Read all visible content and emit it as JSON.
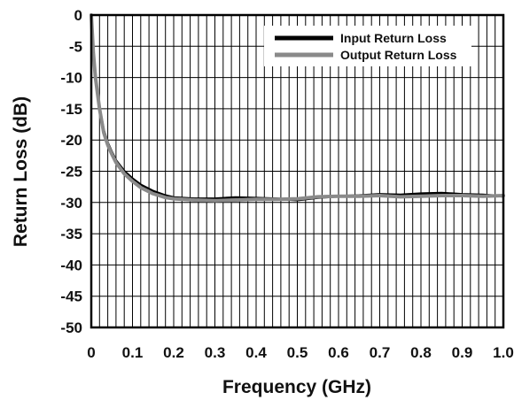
{
  "chart_data": {
    "type": "line",
    "xlabel": "Frequency (GHz)",
    "ylabel": "Return Loss (dB)",
    "xlim": [
      0,
      1.0
    ],
    "ylim": [
      -50,
      0
    ],
    "grid": true,
    "legend_placement": "top-right",
    "x_ticks": [
      "0",
      "0.1",
      "0.2",
      "0.3",
      "0.4",
      "0.5",
      "0.6",
      "0.7",
      "0.8",
      "0.9",
      "1.0"
    ],
    "y_ticks": [
      "0",
      "-5",
      "-10",
      "-15",
      "-20",
      "-25",
      "-30",
      "-35",
      "-40",
      "-45",
      "-50"
    ],
    "series": [
      {
        "name": "Input Return Loss",
        "color": "#000000",
        "points": [
          [
            0,
            0
          ],
          [
            0.005,
            -6
          ],
          [
            0.01,
            -10
          ],
          [
            0.02,
            -15
          ],
          [
            0.03,
            -18.5
          ],
          [
            0.04,
            -20.5
          ],
          [
            0.05,
            -22
          ],
          [
            0.06,
            -23.3
          ],
          [
            0.08,
            -25
          ],
          [
            0.1,
            -26.2
          ],
          [
            0.12,
            -27.2
          ],
          [
            0.15,
            -28.2
          ],
          [
            0.18,
            -28.9
          ],
          [
            0.2,
            -29.2
          ],
          [
            0.25,
            -29.4
          ],
          [
            0.3,
            -29.4
          ],
          [
            0.35,
            -29.2
          ],
          [
            0.4,
            -29.3
          ],
          [
            0.45,
            -29.4
          ],
          [
            0.5,
            -29.6
          ],
          [
            0.55,
            -29.2
          ],
          [
            0.6,
            -29.0
          ],
          [
            0.65,
            -28.9
          ],
          [
            0.7,
            -28.7
          ],
          [
            0.75,
            -28.8
          ],
          [
            0.8,
            -28.6
          ],
          [
            0.85,
            -28.5
          ],
          [
            0.9,
            -28.7
          ],
          [
            0.95,
            -28.8
          ],
          [
            1.0,
            -29.0
          ]
        ]
      },
      {
        "name": "Output Return Loss",
        "color": "#8a8a8a",
        "points": [
          [
            0,
            0
          ],
          [
            0.005,
            -6
          ],
          [
            0.01,
            -10
          ],
          [
            0.02,
            -15
          ],
          [
            0.03,
            -18.8
          ],
          [
            0.04,
            -20.8
          ],
          [
            0.05,
            -22.3
          ],
          [
            0.06,
            -23.6
          ],
          [
            0.08,
            -25.4
          ],
          [
            0.1,
            -26.6
          ],
          [
            0.12,
            -27.6
          ],
          [
            0.15,
            -28.6
          ],
          [
            0.18,
            -29.2
          ],
          [
            0.2,
            -29.4
          ],
          [
            0.25,
            -29.6
          ],
          [
            0.3,
            -29.7
          ],
          [
            0.35,
            -29.6
          ],
          [
            0.4,
            -29.5
          ],
          [
            0.45,
            -29.5
          ],
          [
            0.5,
            -29.4
          ],
          [
            0.55,
            -29.1
          ],
          [
            0.6,
            -29.0
          ],
          [
            0.65,
            -29.0
          ],
          [
            0.7,
            -28.9
          ],
          [
            0.75,
            -29.1
          ],
          [
            0.8,
            -29.0
          ],
          [
            0.85,
            -28.9
          ],
          [
            0.9,
            -28.9
          ],
          [
            0.95,
            -29.0
          ],
          [
            1.0,
            -28.9
          ]
        ]
      }
    ]
  }
}
